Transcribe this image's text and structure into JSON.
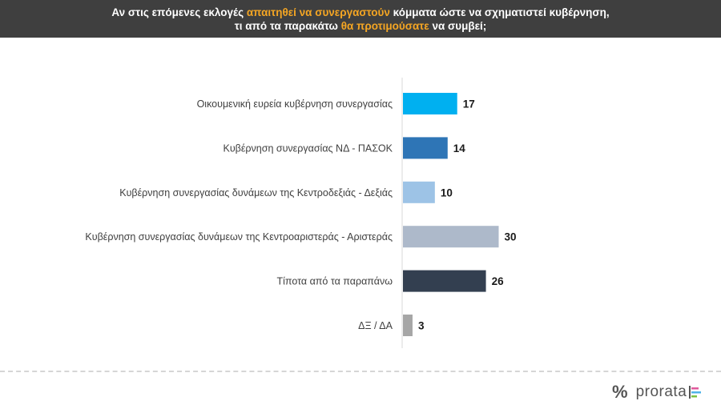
{
  "header": {
    "line1_a": "Αν στις επόμενες εκλογές ",
    "line1_hl": "απαιτηθεί να συνεργαστούν",
    "line1_b": " κόμματα ώστε να σχηματιστεί κυβέρνηση,",
    "line2_a": "τι από τα παρακάτω ",
    "line2_hl": "θα προτιμούσατε",
    "line2_b": " να συμβεί;"
  },
  "chart_data": {
    "type": "bar",
    "orientation": "horizontal",
    "categories": [
      "Οικουμενική ευρεία κυβέρνηση συνεργασίας",
      "Κυβέρνηση συνεργασίας ΝΔ - ΠΑΣΟΚ",
      "Κυβέρνηση συνεργασίας δυνάμεων της Κεντροδεξιάς - Δεξιάς",
      "Κυβέρνηση συνεργασίας δυνάμεων της Κεντροαριστεράς - Αριστεράς",
      "Τίποτα από τα παραπάνω",
      "ΔΞ / ΔΑ"
    ],
    "values": [
      17,
      14,
      10,
      30,
      26,
      3
    ],
    "colors": [
      "#00b0f0",
      "#2e75b6",
      "#9dc3e6",
      "#adb9ca",
      "#333f50",
      "#a6a6a6"
    ],
    "data_labels": true,
    "grid": false,
    "xlim": [
      0,
      30
    ]
  },
  "logo": {
    "symbol": "%",
    "brand": "prorata"
  }
}
